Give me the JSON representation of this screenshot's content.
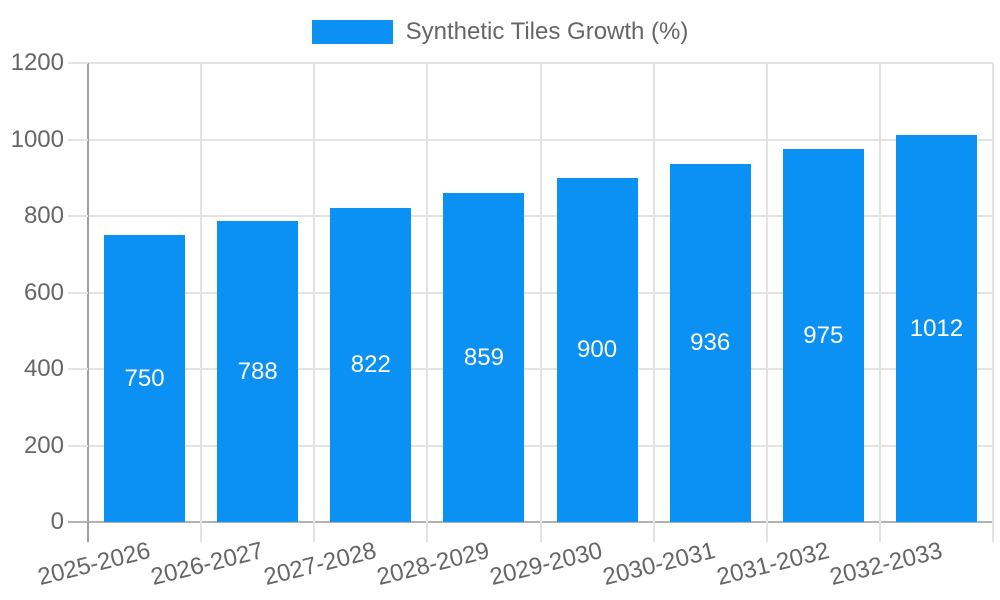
{
  "legend": {
    "label": "Synthetic Tiles Growth (%)"
  },
  "colors": {
    "bar": "#0B90F4",
    "grid": "#E3E3E3",
    "axis": "#A0A0A0",
    "zero_line": "#B3B3B3",
    "label_text": "#666666",
    "value_text": "#FFFFFF",
    "background": "#FFFFFF"
  },
  "chart_data": {
    "type": "bar",
    "title": "",
    "legend_entries": [
      "Synthetic Tiles Growth (%)"
    ],
    "legend_position": "top-center",
    "categories": [
      "2025-2026",
      "2026-2027",
      "2027-2028",
      "2028-2029",
      "2029-2030",
      "2030-2031",
      "2031-2032",
      "2032-2033"
    ],
    "values": [
      750,
      788,
      822,
      859,
      900,
      936,
      975,
      1012
    ],
    "value_labels": [
      "750",
      "788",
      "822",
      "859",
      "900",
      "936",
      "975",
      "1012"
    ],
    "value_label_position": "inside-center",
    "xlabel": "",
    "ylabel": "",
    "ylim": [
      0,
      1200
    ],
    "yticks": [
      0,
      200,
      400,
      600,
      800,
      1000,
      1200
    ],
    "grid": "both",
    "xtick_rotation_deg": -14
  }
}
